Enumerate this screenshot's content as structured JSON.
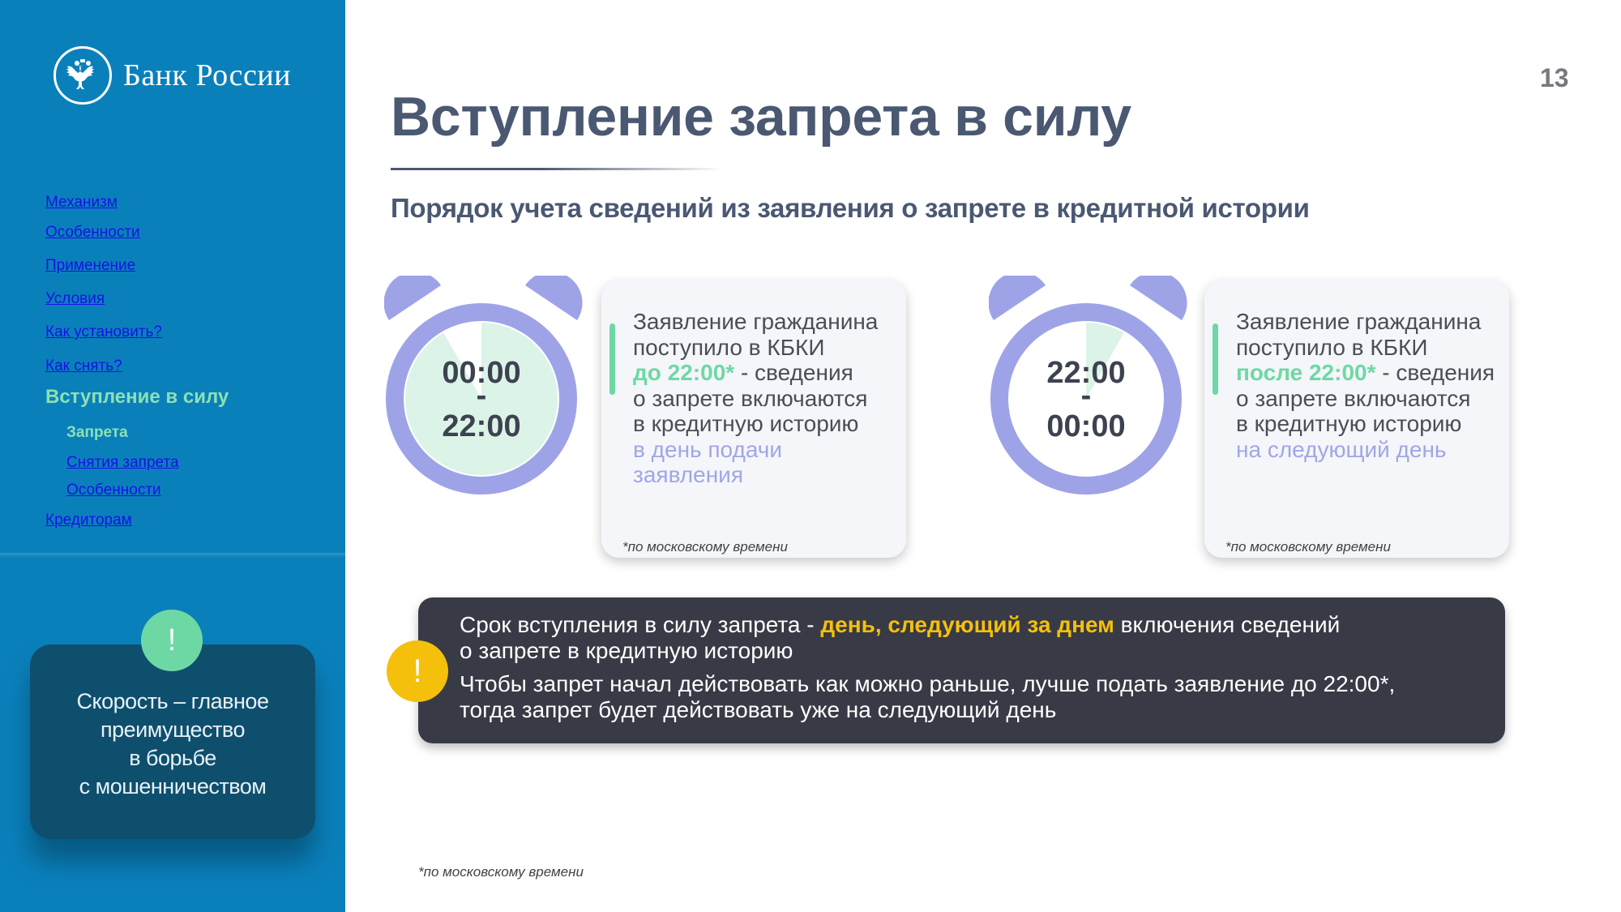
{
  "brand": {
    "name": "Банк России",
    "logo_icon": "double-headed-eagle-icon"
  },
  "page_number": "13",
  "sidebar": {
    "nav": [
      {
        "label": "Механизм",
        "active": false,
        "level": 1
      },
      {
        "label": "Особенности",
        "active": false,
        "level": 1
      },
      {
        "label": "Применение",
        "active": false,
        "level": 1
      },
      {
        "label": "Условия",
        "active": false,
        "level": 1
      },
      {
        "label": "Как установить?",
        "active": false,
        "level": 1
      },
      {
        "label": "Как снять?",
        "active": false,
        "level": 1
      },
      {
        "label": "Вступление в силу",
        "active": true,
        "level": 1
      },
      {
        "label": "Запрета",
        "active": true,
        "level": 2
      },
      {
        "label": "Снятия запрета",
        "active": false,
        "level": 2
      },
      {
        "label": "Особенности",
        "active": false,
        "level": 2
      },
      {
        "label": "Кредиторам",
        "active": false,
        "level": 1
      }
    ],
    "tip": {
      "badge": "!",
      "lines": [
        "Скорость – главное",
        "преимущество",
        "в борьбе",
        "с мошенничеством"
      ]
    }
  },
  "header": {
    "title": "Вступление запрета в силу",
    "subtitle": "Порядок учета сведений из заявления о запрете в кредитной истории"
  },
  "panels": [
    {
      "clock": {
        "start": "00:00",
        "separator": "-",
        "end": "22:00",
        "filled_fraction": 0.917
      },
      "card": {
        "line1": "Заявление гражданина",
        "line2": "поступило в КБКИ",
        "time_text": "до 22:00*",
        "time_suffix": " - сведения",
        "line4": "о запрете включаются",
        "line5": "в кредитную историю",
        "result_line1": "в день подачи",
        "result_line2": "заявления",
        "note": "*по московскому времени"
      }
    },
    {
      "clock": {
        "start": "22:00",
        "separator": "-",
        "end": "00:00",
        "filled_fraction": 0.083
      },
      "card": {
        "line1": "Заявление гражданина",
        "line2": "поступило в КБКИ",
        "time_text": "после 22:00*",
        "time_suffix": " - сведения",
        "line4": "о запрете включаются",
        "line5": "в кредитную историю",
        "result_line1": "на следующий день",
        "result_line2": "",
        "note": "*по московскому времени"
      }
    }
  ],
  "banner": {
    "badge": "!",
    "p1_prefix": "Срок вступления в силу запрета - ",
    "p1_highlight": "день, следующий за днем",
    "p1_suffix": " включения сведений",
    "p1_line2": "о запрете в кредитную историю",
    "p2_line1": "Чтобы запрет начал действовать как можно раньше, лучше подать заявление до 22:00*,",
    "p2_line2": "тогда запрет будет действовать уже на следующий день"
  },
  "footnote": "*по московскому времени",
  "colors": {
    "sidebar_bg": "#0a80bb",
    "accent_green": "#6ed8a5",
    "clock_purple": "#9ea3e8",
    "highlight_yellow": "#f4c00c",
    "banner_bg": "#383a45",
    "title_color": "#4a5872"
  }
}
